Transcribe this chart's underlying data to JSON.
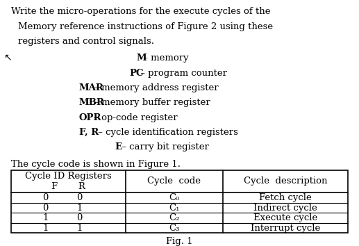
{
  "title_lines": [
    "Write the micro-operations for the execute cycles of the",
    "Memory reference instructions of Figure 2 using these",
    "registers and control signals."
  ],
  "bullet_lines": [
    [
      "M",
      " – memory"
    ],
    [
      "PC",
      " – program counter"
    ],
    [
      "MAR",
      " – memory address register"
    ],
    [
      "MBR",
      " – memory buffer register"
    ],
    [
      "OPR",
      " – op-code register"
    ],
    [
      "F, R",
      " – cycle identification registers"
    ],
    [
      "E",
      " – carry bit register"
    ]
  ],
  "bullet_indents": [
    0.38,
    0.36,
    0.22,
    0.22,
    0.22,
    0.22,
    0.32
  ],
  "bottom_text": "The cycle code is shown in Figure 1.",
  "table_header_col1": "Cycle ID Registers",
  "table_header_col1b": "F       R",
  "table_header_col2": "Cycle  code",
  "table_header_col3": "Cycle  description",
  "table_rows": [
    [
      "0",
      "0",
      "C₀",
      "Fetch cycle"
    ],
    [
      "0",
      "1",
      "C₁",
      "Indirect cycle"
    ],
    [
      "1",
      "0",
      "C₂",
      "Execute cycle"
    ],
    [
      "1",
      "1",
      "C₃",
      "Interrupt cycle"
    ]
  ],
  "fig_label": "Fig. 1",
  "bg_color": "#ffffff",
  "text_color": "#000000",
  "font_size": 9.5,
  "table_font_size": 9.5
}
